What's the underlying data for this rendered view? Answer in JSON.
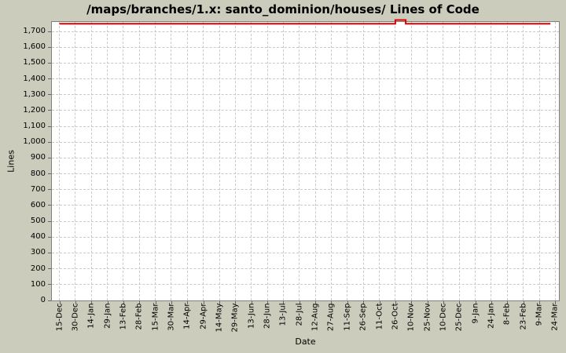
{
  "chart": {
    "background_color": "#CCCCBC",
    "plot_background": "#FFFFFF",
    "gridline_color": "#C9C9C9",
    "border_color": "#808080",
    "line_color": "#E00000"
  },
  "chart_data": {
    "type": "line",
    "title": "/maps/branches/1.x: santo_dominion/houses/ Lines of Code",
    "xlabel": "Date",
    "ylabel": "Lines",
    "x_tick_labels": [
      "15-Dec",
      "30-Dec",
      "14-Jan",
      "29-Jan",
      "13-Feb",
      "28-Feb",
      "15-Mar",
      "30-Mar",
      "14-Apr",
      "29-Apr",
      "14-May",
      "29-May",
      "13-Jun",
      "28-Jun",
      "13-Jul",
      "28-Jul",
      "12-Aug",
      "27-Aug",
      "11-Sep",
      "26-Sep",
      "11-Oct",
      "26-Oct",
      "10-Nov",
      "25-Nov",
      "10-Dec",
      "25-Dec",
      "9-Jan",
      "24-Jan",
      "8-Feb",
      "23-Feb",
      "9-Mar",
      "24-Mar"
    ],
    "y_ticks": [
      0,
      100,
      200,
      300,
      400,
      500,
      600,
      700,
      800,
      900,
      1000,
      1100,
      1200,
      1300,
      1400,
      1500,
      1600,
      1700
    ],
    "ylim": [
      0,
      1760
    ],
    "grid": true,
    "legend": false,
    "series": [
      {
        "name": "Lines of Code",
        "color": "#E00000",
        "points_format": "[x in tick-index units from 15-Dec (15 days per unit), approx lines of code]",
        "points": [
          [
            0,
            1748
          ],
          [
            21.0,
            1748
          ],
          [
            21.0,
            1772
          ],
          [
            21.65,
            1772
          ],
          [
            21.65,
            1748
          ],
          [
            30.7,
            1748
          ]
        ],
        "note": "Line is flat at ~1,750 LOC across the whole range; brief spike to ~1,770 (clipped at plot top) around 26-Oct to 5-Nov; series ends just before the 24-Mar tick."
      }
    ]
  }
}
